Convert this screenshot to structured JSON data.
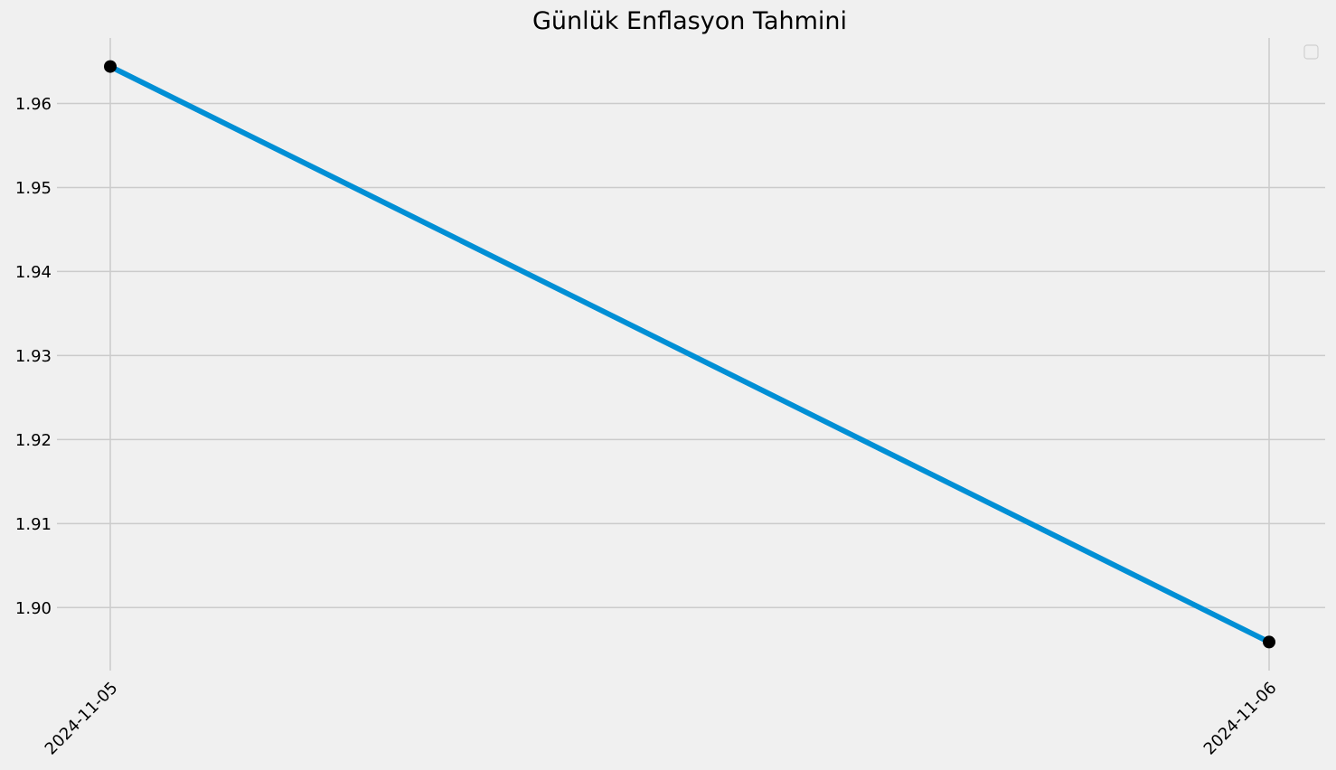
{
  "chart_data": {
    "type": "line",
    "title": "Günlük Enflasyon Tahmini",
    "xlabel": "",
    "ylabel": "",
    "x": [
      "2024-11-05",
      "2024-11-06"
    ],
    "series": [
      {
        "values": [
          1.9644,
          1.8959
        ],
        "color": "#008fd5",
        "marker_color": "#000000"
      }
    ],
    "ylim": [
      1.8925,
      1.9678
    ],
    "yticks": [
      1.9,
      1.91,
      1.92,
      1.93,
      1.94,
      1.95,
      1.96
    ],
    "ytick_labels": [
      "1.90",
      "1.91",
      "1.92",
      "1.93",
      "1.94",
      "1.95",
      "1.96"
    ],
    "xtick_labels": [
      "2024-11-05",
      "2024-11-06"
    ],
    "grid": true,
    "legend": {
      "placement": "top-right",
      "entries": []
    },
    "background_color": "#f0f0f0",
    "grid_color": "#cbcbcb"
  }
}
